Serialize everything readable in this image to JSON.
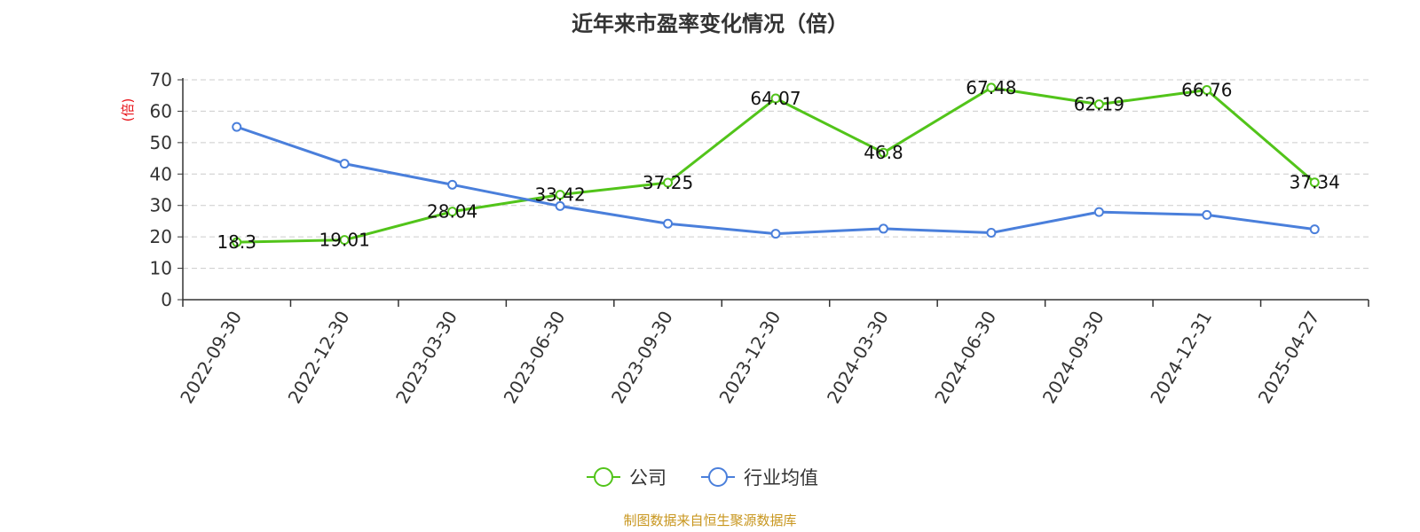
{
  "chart_data": {
    "type": "line",
    "title": "近年来市盈率变化情况（倍）",
    "ylabel": "(倍)",
    "xlabel": "",
    "categories": [
      "2022-09-30",
      "2022-12-30",
      "2023-03-30",
      "2023-06-30",
      "2023-09-30",
      "2023-12-30",
      "2024-03-30",
      "2024-06-30",
      "2024-09-30",
      "2024-12-31",
      "2025-04-27"
    ],
    "ylim": [
      0,
      70
    ],
    "yticks": [
      0,
      10,
      20,
      30,
      40,
      50,
      60,
      70
    ],
    "grid": true,
    "legend_position": "bottom-center",
    "series": [
      {
        "name": "公司",
        "color": "#52c41a",
        "values": [
          18.3,
          19.01,
          28.04,
          33.42,
          37.25,
          64.07,
          46.8,
          67.48,
          62.19,
          66.76,
          37.34
        ],
        "labels": [
          "18.3",
          "19.01",
          "28.04",
          "33.42",
          "37.25",
          "64.07",
          "46.8",
          "67.48",
          "62.19",
          "66.76",
          "37.34"
        ]
      },
      {
        "name": "行业均值",
        "color": "#4a7fdb",
        "values": [
          55.0,
          43.3,
          36.6,
          29.8,
          24.2,
          21.0,
          22.6,
          21.3,
          27.9,
          27.0,
          22.4
        ]
      }
    ],
    "source": "制图数据来自恒生聚源数据库"
  }
}
